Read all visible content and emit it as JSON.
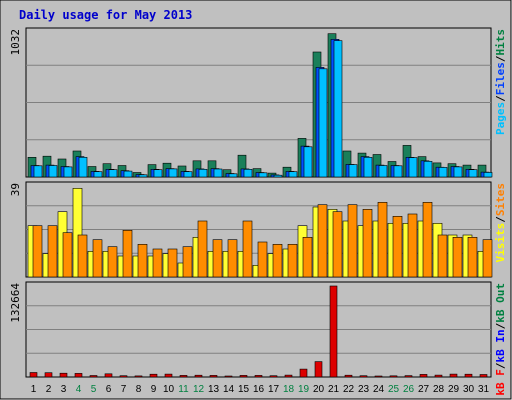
{
  "chart_data": {
    "type": "bar",
    "title": "Daily usage for May 2013",
    "categories": [
      "1",
      "2",
      "3",
      "4",
      "5",
      "6",
      "7",
      "8",
      "9",
      "10",
      "11",
      "12",
      "13",
      "14",
      "15",
      "16",
      "17",
      "18",
      "19",
      "20",
      "21",
      "22",
      "23",
      "24",
      "25",
      "26",
      "27",
      "28",
      "29",
      "30",
      "31"
    ],
    "weekend_days": [
      "4",
      "5",
      "11",
      "12",
      "18",
      "19",
      "25",
      "26"
    ],
    "panels": [
      {
        "id": "hits",
        "ymax_label": "1032",
        "ylim": [
          0,
          1032
        ],
        "grid": true,
        "legend": [
          {
            "text": "Pages",
            "color": "#00c0ff"
          },
          {
            "text": "/",
            "color": "#000000"
          },
          {
            "text": "Files",
            "color": "#0040ff"
          },
          {
            "text": "/",
            "color": "#000000"
          },
          {
            "text": "Hits",
            "color": "#008040"
          }
        ],
        "series": [
          {
            "name": "Hits",
            "color": "#1a7f5a",
            "values": [
              140,
              148,
              128,
              185,
              75,
              95,
              82,
              32,
              88,
              98,
              78,
              115,
              115,
              52,
              155,
              60,
              28,
              70,
              275,
              890,
              1020,
              185,
              170,
              160,
              110,
              225,
              145,
              100,
              95,
              85,
              85
            ]
          },
          {
            "name": "Files",
            "color": "#0050ff",
            "values": [
              82,
              85,
              75,
              145,
              40,
              55,
              45,
              18,
              55,
              60,
              40,
              58,
              60,
              25,
              58,
              32,
              15,
              40,
              220,
              780,
              980,
              90,
              145,
              85,
              82,
              140,
              115,
              70,
              75,
              55,
              35
            ]
          },
          {
            "name": "Pages",
            "color": "#00c0ff",
            "values": [
              80,
              82,
              72,
              140,
              38,
              52,
              42,
              16,
              52,
              58,
              38,
              55,
              57,
              23,
              55,
              30,
              13,
              38,
              215,
              770,
              970,
              88,
              140,
              82,
              80,
              138,
              112,
              68,
              72,
              52,
              33
            ]
          }
        ]
      },
      {
        "id": "visits",
        "ymax_label": "39",
        "ylim": [
          0,
          39
        ],
        "grid": true,
        "legend": [
          {
            "text": "Visits",
            "color": "#ffff00"
          },
          {
            "text": "/",
            "color": "#000000"
          },
          {
            "text": "Sites",
            "color": "#ff8000"
          }
        ],
        "series": [
          {
            "name": "Visits",
            "color": "#ffff33",
            "values": [
              22,
              10,
              28,
              38,
              11,
              11,
              9,
              9,
              9,
              10,
              6,
              17,
              11,
              11,
              11,
              5,
              10,
              12,
              22,
              30,
              29,
              24,
              22,
              24,
              23,
              23,
              24,
              23,
              18,
              18,
              11
            ]
          },
          {
            "name": "Sites",
            "color": "#ff8c00",
            "values": [
              22,
              22,
              19,
              18,
              16,
              13,
              20,
              14,
              12,
              12,
              13,
              24,
              16,
              16,
              24,
              15,
              14,
              14,
              17,
              31,
              28,
              31,
              29,
              32,
              26,
              27,
              32,
              18,
              17,
              17,
              16
            ]
          }
        ]
      },
      {
        "id": "kbytes",
        "ymax_label": "132664",
        "ylim": [
          0,
          132664
        ],
        "grid": true,
        "legend": [
          {
            "text": "kB F",
            "color": "#ff0000"
          },
          {
            "text": "/",
            "color": "#000000"
          },
          {
            "text": "kB In",
            "color": "#0000ff"
          },
          {
            "text": "/",
            "color": "#000000"
          },
          {
            "text": "kB Out",
            "color": "#008040"
          }
        ],
        "series": [
          {
            "name": "kB F",
            "color": "#dd0000",
            "values": [
              6500,
              6200,
              5600,
              5300,
              2200,
              4700,
              1900,
              1600,
              4100,
              4300,
              2300,
              2600,
              2300,
              1400,
              2400,
              2300,
              1900,
              2700,
              11500,
              22500,
              132664,
              2600,
              1900,
              1400,
              1700,
              2100,
              3800,
              2800,
              4300,
              4100,
              3600
            ]
          }
        ]
      }
    ]
  }
}
